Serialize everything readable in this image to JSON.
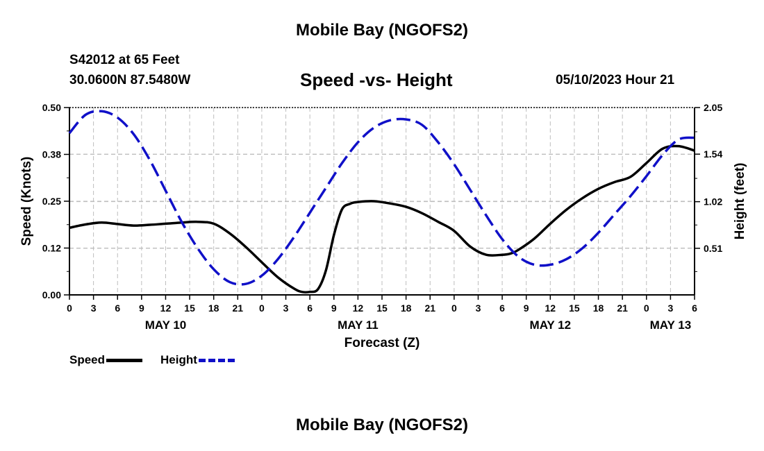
{
  "title": "Mobile Bay (NGOFS2)",
  "footer_title": "Mobile Bay (NGOFS2)",
  "station": {
    "id_line": "S42012 at 65 Feet",
    "coords_line": "30.0600N  87.5480W"
  },
  "run_time": "05/10/2023 Hour 21",
  "legend": {
    "speed_label": "Speed",
    "height_label": "Height"
  },
  "colors": {
    "speed": "#000000",
    "height": "#1010c8",
    "grid": "#bdbdbd"
  },
  "chart_data": {
    "type": "line",
    "title": "Speed -vs- Height",
    "xlabel": "Forecast (Z)",
    "ylabel_left": "Speed (Knots)",
    "ylabel_right": "Height (feet)",
    "x_unit": "hours since May 10 00Z",
    "xlim": [
      0,
      78
    ],
    "ylim_left": [
      0,
      0.5
    ],
    "ylim_right": [
      0,
      2.05
    ],
    "left_ticks": [
      0,
      0.125,
      0.25,
      0.375,
      0.5
    ],
    "left_tick_labels": [
      "0.00",
      "0.12",
      "0.25",
      "0.38",
      "0.50"
    ],
    "right_ticks": [
      0.51,
      1.02,
      1.54,
      2.05
    ],
    "right_tick_labels": [
      "0.51",
      "1.02",
      "1.54",
      "2.05"
    ],
    "x_ticks": [
      0,
      3,
      6,
      9,
      12,
      15,
      18,
      21,
      24,
      27,
      30,
      33,
      36,
      39,
      42,
      45,
      48,
      51,
      54,
      57,
      60,
      63,
      66,
      69,
      72,
      75,
      78
    ],
    "x_tick_labels": [
      "0",
      "3",
      "6",
      "9",
      "12",
      "15",
      "18",
      "21",
      "0",
      "3",
      "6",
      "9",
      "12",
      "15",
      "18",
      "21",
      "0",
      "3",
      "6",
      "9",
      "12",
      "15",
      "18",
      "21",
      "0",
      "3",
      "6"
    ],
    "day_labels": [
      {
        "x": 12,
        "label": "MAY 10"
      },
      {
        "x": 36,
        "label": "MAY 11"
      },
      {
        "x": 60,
        "label": "MAY 12"
      },
      {
        "x": 75,
        "label": "MAY 13"
      }
    ],
    "grid": true,
    "legend_position": "bottom-left",
    "series": [
      {
        "name": "Speed",
        "axis": "left",
        "style": "solid",
        "x": [
          0,
          2,
          4,
          6,
          8,
          10,
          12,
          14,
          16,
          18,
          20,
          22,
          24,
          26,
          28,
          29,
          30,
          31,
          32,
          33,
          34,
          35,
          36,
          38,
          40,
          42,
          44,
          46,
          48,
          50,
          52,
          54,
          55,
          56,
          58,
          60,
          62,
          64,
          66,
          68,
          70,
          72,
          74,
          76,
          78
        ],
        "values": [
          0.179,
          0.188,
          0.193,
          0.189,
          0.185,
          0.187,
          0.19,
          0.193,
          0.195,
          0.19,
          0.164,
          0.128,
          0.087,
          0.047,
          0.017,
          0.008,
          0.008,
          0.015,
          0.065,
          0.16,
          0.228,
          0.243,
          0.248,
          0.25,
          0.244,
          0.235,
          0.218,
          0.195,
          0.171,
          0.129,
          0.107,
          0.107,
          0.11,
          0.12,
          0.15,
          0.19,
          0.227,
          0.258,
          0.283,
          0.301,
          0.315,
          0.352,
          0.39,
          0.397,
          0.385
        ]
      },
      {
        "name": "Height",
        "axis": "right",
        "style": "dashed",
        "x": [
          0,
          2,
          4,
          6,
          8,
          10,
          12,
          14,
          16,
          18,
          20,
          22,
          24,
          26,
          28,
          30,
          32,
          34,
          36,
          38,
          40,
          42,
          44,
          46,
          48,
          50,
          52,
          54,
          56,
          58,
          60,
          62,
          64,
          66,
          68,
          70,
          72,
          74,
          76,
          78
        ],
        "values": [
          1.77,
          1.97,
          2.01,
          1.94,
          1.76,
          1.48,
          1.14,
          0.8,
          0.51,
          0.28,
          0.14,
          0.12,
          0.21,
          0.39,
          0.63,
          0.9,
          1.17,
          1.44,
          1.67,
          1.83,
          1.91,
          1.92,
          1.86,
          1.67,
          1.43,
          1.15,
          0.87,
          0.61,
          0.42,
          0.33,
          0.33,
          0.39,
          0.51,
          0.68,
          0.88,
          1.08,
          1.3,
          1.53,
          1.7,
          1.72
        ]
      }
    ]
  }
}
